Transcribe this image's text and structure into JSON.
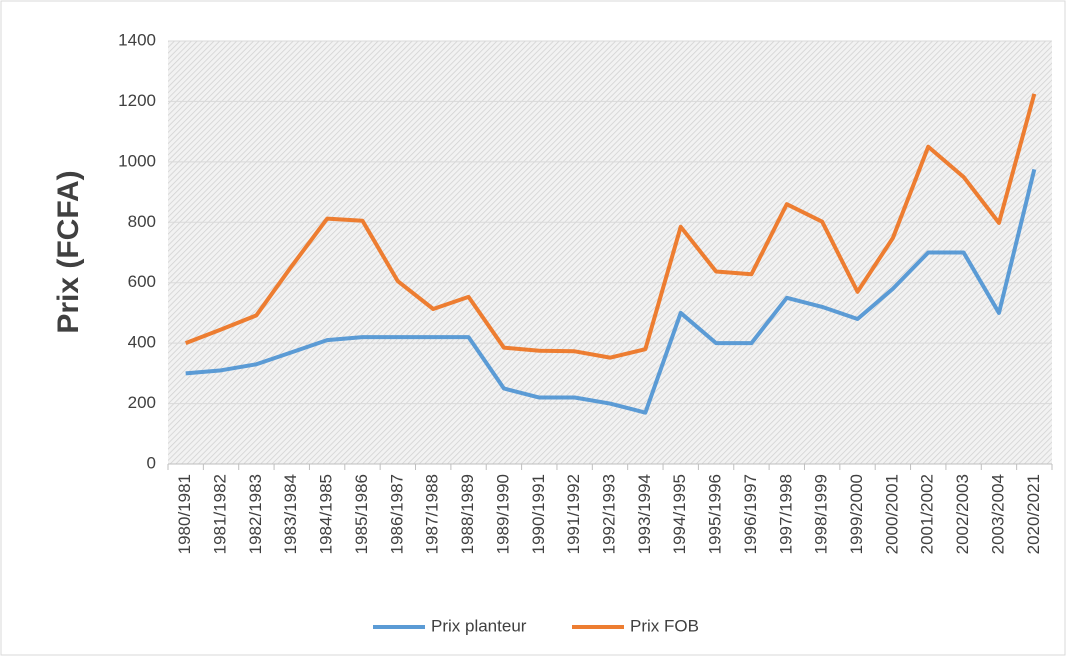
{
  "chart_data": {
    "type": "line",
    "y_label": "Prix (FCFA)",
    "categories": [
      "1980/1981",
      "1981/1982",
      "1982/1983",
      "1983/1984",
      "1984/1985",
      "1985/1986",
      "1986/1987",
      "1987/1988",
      "1988/1989",
      "1989/1990",
      "1990/1991",
      "1991/1992",
      "1992/1993",
      "1993/1994",
      "1994/1995",
      "1995/1996",
      "1996/1997",
      "1997/1998",
      "1998/1999",
      "1999/2000",
      "2000/2001",
      "2001/2002",
      "2002/2003",
      "2003/2004",
      "2020/2021"
    ],
    "series": [
      {
        "name": "Prix planteur",
        "color": "#5b9bd5",
        "values": [
          300,
          310,
          330,
          370,
          410,
          420,
          420,
          420,
          420,
          250,
          220,
          220,
          200,
          170,
          500,
          400,
          400,
          550,
          520,
          480,
          580,
          700,
          700,
          500,
          975
        ]
      },
      {
        "name": "Prix FOB",
        "color": "#ed7d31",
        "values": [
          400,
          445,
          492,
          655,
          812,
          805,
          605,
          513,
          553,
          385,
          375,
          373,
          352,
          380,
          785,
          637,
          628,
          860,
          802,
          570,
          748,
          1050,
          950,
          798,
          1225
        ]
      }
    ],
    "ylim": [
      0,
      1400
    ],
    "yticks": [
      0,
      200,
      400,
      600,
      800,
      1000,
      1200,
      1400
    ],
    "grid": true,
    "legend": "bottom"
  }
}
